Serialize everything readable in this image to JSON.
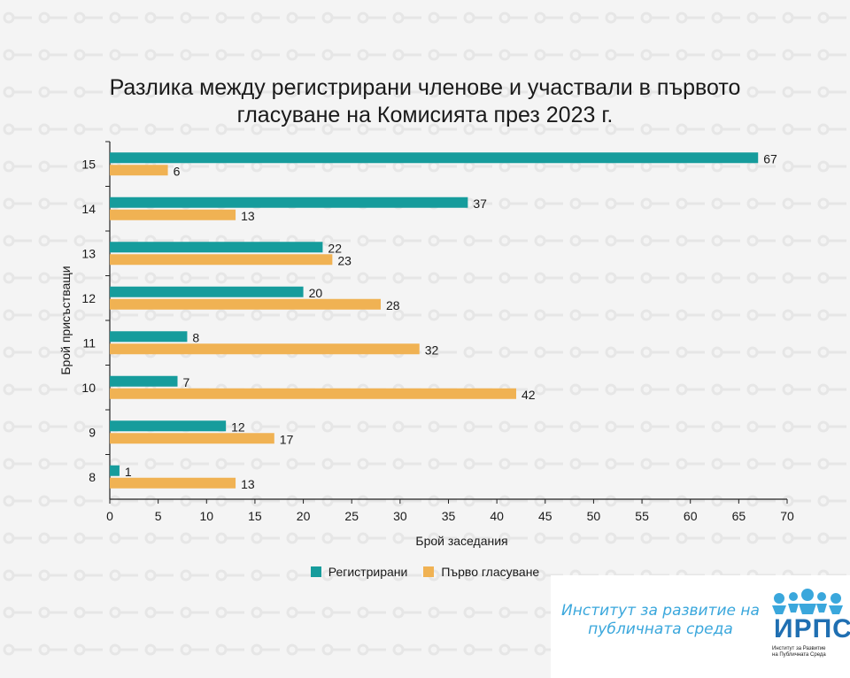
{
  "chart_data": {
    "type": "bar",
    "orientation": "horizontal",
    "title_lines": [
      "Разлика между регистрирани членове и участвали в първото",
      "гласуване на Комисията през 2023 г."
    ],
    "xlabel": "Брой заседания",
    "ylabel": "Брой присъстващи",
    "categories": [
      "15",
      "14",
      "13",
      "12",
      "11",
      "10",
      "9",
      "8"
    ],
    "series": [
      {
        "name": "Регистрирани",
        "color": "#169c9c",
        "values": [
          67,
          37,
          22,
          20,
          8,
          7,
          12,
          1
        ]
      },
      {
        "name": "Първо гласуване",
        "color": "#f0b253",
        "values": [
          6,
          13,
          23,
          28,
          32,
          42,
          17,
          13
        ]
      }
    ],
    "xlim": [
      0,
      70
    ],
    "xticks": [
      0,
      5,
      10,
      15,
      20,
      25,
      30,
      35,
      40,
      45,
      50,
      55,
      60,
      65,
      70
    ],
    "grid": false,
    "legend_position": "bottom",
    "data_labels": true
  },
  "logo": {
    "name_lines": [
      "Институт за развитие на",
      "публичната среда"
    ],
    "abbr": "ИРПС",
    "sub_lines": [
      "Институт за Развитие",
      "на Публичната Среда"
    ]
  }
}
